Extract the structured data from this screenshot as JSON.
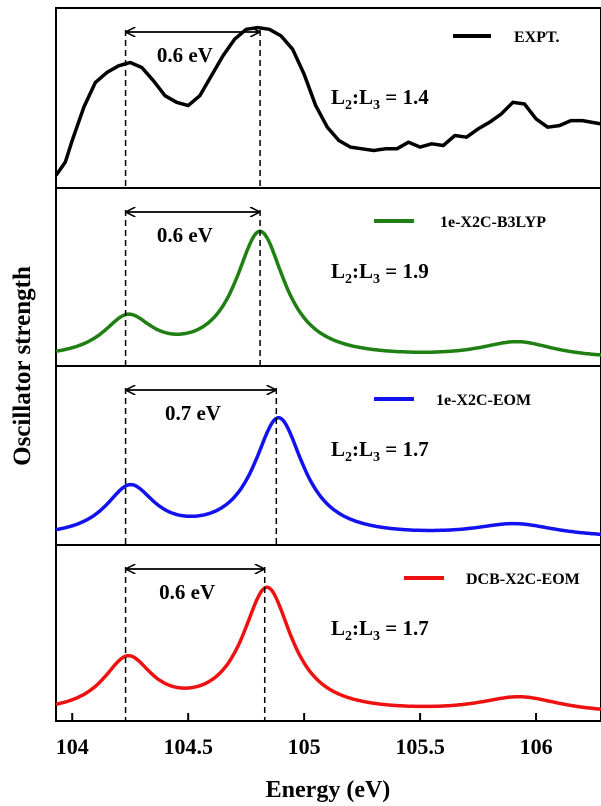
{
  "chart_data": {
    "type": "line",
    "xlabel": "Energy (eV)",
    "ylabel": "Oscillator strength",
    "xlim": [
      103.93,
      106.28
    ],
    "x_ticks": [
      104,
      104.5,
      105,
      105.5,
      106
    ],
    "x_tick_labels": [
      "104",
      "104.5",
      "105",
      "105.5",
      "106"
    ],
    "grid": false,
    "layout": "four vertically stacked panels sharing the x axis",
    "panels": [
      {
        "series": {
          "name": "EXPT.",
          "color": "#000000",
          "x": [
            103.93,
            103.97,
            104.0,
            104.05,
            104.1,
            104.15,
            104.2,
            104.25,
            104.3,
            104.35,
            104.4,
            104.45,
            104.5,
            104.55,
            104.6,
            104.65,
            104.7,
            104.75,
            104.8,
            104.85,
            104.9,
            104.95,
            105.0,
            105.05,
            105.1,
            105.15,
            105.2,
            105.25,
            105.3,
            105.35,
            105.4,
            105.45,
            105.5,
            105.55,
            105.6,
            105.65,
            105.7,
            105.75,
            105.8,
            105.85,
            105.9,
            105.95,
            106.0,
            106.05,
            106.1,
            106.15,
            106.2,
            106.28
          ],
          "y": [
            0.04,
            0.12,
            0.25,
            0.45,
            0.6,
            0.66,
            0.7,
            0.72,
            0.69,
            0.61,
            0.52,
            0.48,
            0.46,
            0.52,
            0.64,
            0.76,
            0.86,
            0.92,
            0.93,
            0.92,
            0.88,
            0.8,
            0.65,
            0.46,
            0.33,
            0.25,
            0.21,
            0.2,
            0.19,
            0.2,
            0.2,
            0.24,
            0.21,
            0.23,
            0.22,
            0.28,
            0.27,
            0.32,
            0.36,
            0.41,
            0.48,
            0.47,
            0.38,
            0.33,
            0.34,
            0.37,
            0.37,
            0.35
          ]
        },
        "arrow_from": 104.23,
        "arrow_to": 104.81,
        "separation_label": "0.6 eV",
        "ratio_label": {
          "prefix": "L",
          "sub1": "2",
          "mid": ":L",
          "sub2": "3",
          "value": " = 1.4"
        }
      },
      {
        "series": {
          "name": "1e-X2C-B3LYP",
          "color": "#1f7f12",
          "peaks": [
            {
              "center": 104.24,
              "height": 0.24,
              "width": 0.13
            },
            {
              "center": 104.81,
              "height": 0.77,
              "width": 0.13
            },
            {
              "center": 105.92,
              "height": 0.1,
              "width": 0.2
            }
          ],
          "baseline": 0.0
        },
        "arrow_from": 104.23,
        "arrow_to": 104.81,
        "separation_label": "0.6 eV",
        "ratio_label": {
          "prefix": "L",
          "sub1": "2",
          "mid": ":L",
          "sub2": "3",
          "value": " = 1.9"
        }
      },
      {
        "series": {
          "name": "1e-X2C-EOM",
          "color": "#1212f0",
          "peaks": [
            {
              "center": 104.25,
              "height": 0.3,
              "width": 0.13
            },
            {
              "center": 104.89,
              "height": 0.72,
              "width": 0.13
            },
            {
              "center": 105.91,
              "height": 0.08,
              "width": 0.22
            }
          ],
          "baseline": 0.0
        },
        "arrow_from": 104.23,
        "arrow_to": 104.88,
        "separation_label": "0.7 eV",
        "ratio_label": {
          "prefix": "L",
          "sub1": "2",
          "mid": ":L",
          "sub2": "3",
          "value": " = 1.7"
        }
      },
      {
        "series": {
          "name": "DCB-X2C-EOM",
          "color": "#ee1111",
          "peaks": [
            {
              "center": 104.24,
              "height": 0.33,
              "width": 0.13
            },
            {
              "center": 104.84,
              "height": 0.77,
              "width": 0.13
            },
            {
              "center": 105.93,
              "height": 0.1,
              "width": 0.22
            }
          ],
          "baseline": 0.0
        },
        "arrow_from": 104.23,
        "arrow_to": 104.83,
        "separation_label": "0.6 eV",
        "ratio_label": {
          "prefix": "L",
          "sub1": "2",
          "mid": ":L",
          "sub2": "3",
          "value": " = 1.7"
        }
      }
    ]
  }
}
